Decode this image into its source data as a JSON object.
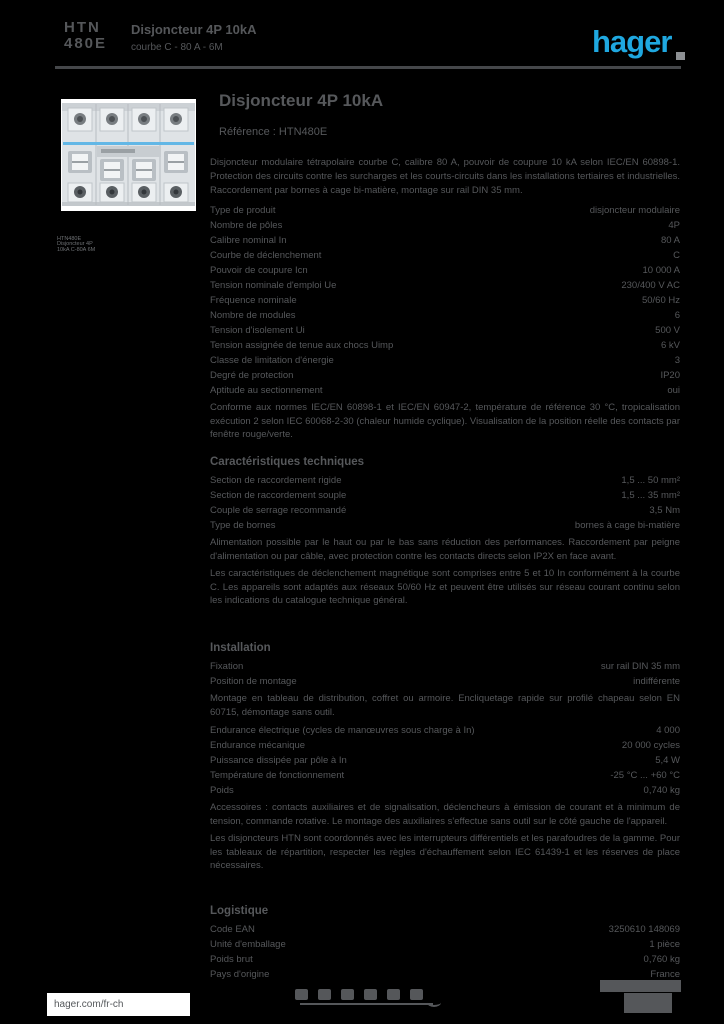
{
  "colors": {
    "background": "#000000",
    "text_gray": "#56585b",
    "accent_blue": "#1fa8e0",
    "rule_gray": "#45474a"
  },
  "header": {
    "ref_line1": "HTN",
    "ref_line2": "480E",
    "title_line1": "Disjoncteur 4P 10kA",
    "title_line2": "courbe C - 80 A - 6M",
    "logo_text": "hager"
  },
  "product": {
    "caption": {
      "line1": "HTN480E",
      "line2": "Disjoncteur 4P",
      "line3": "10kA C-80A 6M"
    }
  },
  "main": {
    "title": "Disjoncteur 4P 10kA",
    "subtitle": "Référence : HTN480E",
    "description": "Disjoncteur modulaire tétrapolaire courbe C, calibre 80 A, pouvoir de coupure 10 kA selon IEC/EN 60898-1. Protection des circuits contre les surcharges et les courts-circuits dans les installations tertiaires et industrielles. Raccordement par bornes à cage bi-matière, montage sur rail DIN 35 mm.",
    "sections": [
      {
        "heading": null,
        "rows": [
          {
            "label": "Type de produit",
            "value": "disjoncteur modulaire"
          },
          {
            "label": "Nombre de pôles",
            "value": "4P"
          },
          {
            "label": "Calibre nominal In",
            "value": "80 A"
          },
          {
            "label": "Courbe de déclenchement",
            "value": "C"
          },
          {
            "label": "Pouvoir de coupure Icn",
            "value": "10 000 A"
          },
          {
            "label": "Tension nominale d'emploi Ue",
            "value": "230/400 V AC"
          },
          {
            "label": "Fréquence nominale",
            "value": "50/60 Hz"
          },
          {
            "label": "Nombre de modules",
            "value": "6"
          }
        ]
      },
      {
        "heading": null,
        "rows": [
          {
            "label": "Tension d'isolement Ui",
            "value": "500 V"
          },
          {
            "label": "Tension assignée de tenue aux chocs Uimp",
            "value": "6 kV"
          },
          {
            "label": "Classe de limitation d'énergie",
            "value": "3"
          },
          {
            "label": "Degré de protection",
            "value": "IP20"
          },
          {
            "label": "Aptitude au sectionnement",
            "value": "oui"
          },
          {
            "note": "Conforme aux normes IEC/EN 60898-1 et IEC/EN 60947-2, température de référence 30 °C, tropicalisation exécution 2 selon IEC 60068-2-30 (chaleur humide cyclique). Visualisation de la position réelle des contacts par fenêtre rouge/verte."
          }
        ]
      },
      {
        "heading": "Caractéristiques techniques",
        "rows": [
          {
            "label": "Section de raccordement rigide",
            "value": "1,5 ... 50 mm²"
          },
          {
            "label": "Section de raccordement souple",
            "value": "1,5 ... 35 mm²"
          },
          {
            "label": "Couple de serrage recommandé",
            "value": "3,5 Nm"
          },
          {
            "label": "Type de bornes",
            "value": "bornes à cage bi-matière"
          },
          {
            "note": "Alimentation possible par le haut ou par le bas sans réduction des performances. Raccordement par peigne d'alimentation ou par câble, avec protection contre les contacts directs selon IP2X en face avant."
          },
          {
            "note": "Les caractéristiques de déclenchement magnétique sont comprises entre 5 et 10 In conformément à la courbe C. Les appareils sont adaptés aux réseaux 50/60 Hz et peuvent être utilisés sur réseau courant continu selon les indications du catalogue technique général."
          }
        ]
      },
      {
        "heading": "Installation",
        "rows": [
          {
            "label": "Fixation",
            "value": "sur rail DIN 35 mm"
          },
          {
            "label": "Position de montage",
            "value": "indifférente"
          },
          {
            "note": "Montage en tableau de distribution, coffret ou armoire. Encliquetage rapide sur profilé chapeau selon EN 60715, démontage sans outil."
          },
          {
            "label": "Endurance électrique (cycles de manœuvres sous charge à In)",
            "value": "4 000"
          },
          {
            "label": "Endurance mécanique",
            "value": "20 000 cycles"
          },
          {
            "label": "Puissance dissipée par pôle à In",
            "value": "5,4 W"
          },
          {
            "label": "Température de fonctionnement",
            "value": "-25 °C ... +60 °C"
          },
          {
            "label": "Poids",
            "value": "0,740 kg"
          },
          {
            "note": "Accessoires : contacts auxiliaires et de signalisation, déclencheurs à émission de courant et à minimum de tension, commande rotative. Le montage des auxiliaires s'effectue sans outil sur le côté gauche de l'appareil."
          },
          {
            "note": "Les disjoncteurs HTN sont coordonnés avec les interrupteurs différentiels et les parafoudres de la gamme. Pour les tableaux de répartition, respecter les règles d'échauffement selon IEC 61439-1 et les réserves de place nécessaires."
          }
        ]
      },
      {
        "heading": "Logistique",
        "rows": [
          {
            "label": "Code EAN",
            "value": "3250610 148069"
          },
          {
            "label": "Unité d'emballage",
            "value": "1 pièce"
          },
          {
            "label": "Poids brut",
            "value": "0,760 kg"
          },
          {
            "label": "Pays d'origine",
            "value": "France"
          }
        ]
      }
    ]
  },
  "footer": {
    "link": "hager.com/fr-ch",
    "icons": [
      "ce-icon",
      "iec-icon",
      "vde-icon",
      "kema-icon",
      "eac-icon",
      "nf-icon"
    ]
  }
}
